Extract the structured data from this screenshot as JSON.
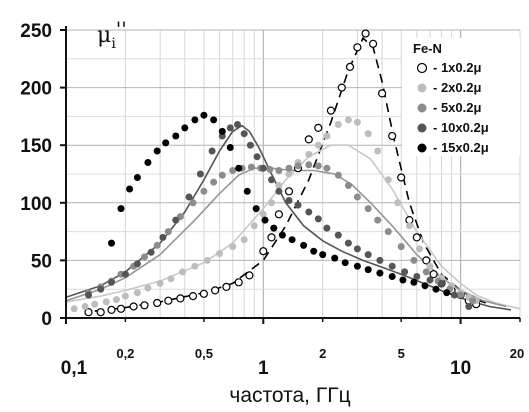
{
  "chart_data": {
    "type": "scatter",
    "xlabel": "частота, ГГц",
    "ylabel": {
      "base": "μ",
      "sub": "i",
      "sup": "''"
    },
    "xscale": "log",
    "xlim": [
      0.1,
      20
    ],
    "ylim": [
      0,
      250
    ],
    "grid": true,
    "x_ticks_major": [
      {
        "v": 0.1,
        "label": "0,1"
      },
      {
        "v": 1,
        "label": "1"
      },
      {
        "v": 10,
        "label": "10"
      }
    ],
    "x_ticks_minor": [
      {
        "v": 0.2,
        "label": "0,2"
      },
      {
        "v": 0.5,
        "label": "0,5"
      },
      {
        "v": 2,
        "label": "2"
      },
      {
        "v": 5,
        "label": "5"
      },
      {
        "v": 20,
        "label": "20"
      }
    ],
    "y_ticks": [
      0,
      50,
      100,
      150,
      200,
      250
    ],
    "legend_title": "Fe-N",
    "legend_position": "top-right",
    "series": [
      {
        "name": "- 1x0.2μ",
        "marker": "open",
        "color": "#000000",
        "x": [
          0.13,
          0.15,
          0.17,
          0.19,
          0.22,
          0.25,
          0.29,
          0.33,
          0.38,
          0.44,
          0.5,
          0.57,
          0.65,
          0.75,
          0.85,
          1.0,
          1.1,
          1.2,
          1.35,
          1.5,
          1.7,
          1.9,
          2.2,
          2.5,
          2.75,
          3.0,
          3.3,
          3.6,
          4.0,
          4.5,
          5.0,
          5.5,
          6.0,
          6.7,
          7.3,
          8.0,
          9.0,
          10.0,
          11.0,
          12.0
        ],
        "y": [
          5,
          5,
          7,
          8,
          10,
          11,
          13,
          15,
          17,
          19,
          21,
          24,
          27,
          31,
          37,
          58,
          70,
          90,
          110,
          130,
          155,
          165,
          180,
          200,
          218,
          235,
          247,
          238,
          195,
          158,
          122,
          85,
          70,
          50,
          38,
          30,
          24,
          20,
          15,
          12
        ]
      },
      {
        "name": "- 2x0.2μ",
        "marker": "filled",
        "color": "#bdbdbd",
        "x": [
          0.11,
          0.125,
          0.14,
          0.16,
          0.18,
          0.2,
          0.23,
          0.26,
          0.3,
          0.34,
          0.39,
          0.45,
          0.52,
          0.6,
          0.7,
          0.8,
          0.9,
          1.0,
          1.1,
          1.2,
          1.35,
          1.5,
          1.7,
          1.9,
          2.1,
          2.4,
          2.7,
          3.0,
          3.4,
          3.8,
          4.3,
          4.8,
          5.5,
          6.2,
          7.0,
          8.0,
          9.0,
          10.0,
          11.0,
          12.0
        ],
        "y": [
          8,
          10,
          12,
          14,
          16,
          19,
          22,
          26,
          30,
          34,
          40,
          45,
          50,
          56,
          62,
          68,
          80,
          90,
          100,
          115,
          125,
          135,
          142,
          150,
          158,
          168,
          172,
          170,
          160,
          145,
          120,
          100,
          80,
          60,
          45,
          35,
          28,
          22,
          18,
          15
        ]
      },
      {
        "name": "- 5x0.2μ",
        "marker": "filled",
        "color": "#8c8c8c",
        "x": [
          0.13,
          0.15,
          0.17,
          0.19,
          0.22,
          0.25,
          0.29,
          0.33,
          0.38,
          0.44,
          0.5,
          0.56,
          0.62,
          0.7,
          0.78,
          0.87,
          0.97,
          1.08,
          1.2,
          1.35,
          1.5,
          1.7,
          1.9,
          2.1,
          2.4,
          2.7,
          3.0,
          3.4,
          3.8,
          4.3,
          5.0,
          5.8,
          6.7,
          7.7,
          8.8,
          10.0,
          11.5
        ],
        "y": [
          22,
          27,
          32,
          38,
          45,
          53,
          63,
          75,
          88,
          100,
          110,
          118,
          124,
          128,
          130,
          131,
          130,
          129,
          128,
          130,
          132,
          133,
          132,
          130,
          124,
          115,
          105,
          95,
          85,
          75,
          62,
          50,
          40,
          32,
          25,
          20,
          15
        ]
      },
      {
        "name": "- 10x0.2μ",
        "marker": "filled",
        "color": "#555555",
        "x": [
          0.13,
          0.15,
          0.17,
          0.2,
          0.23,
          0.27,
          0.31,
          0.36,
          0.42,
          0.48,
          0.55,
          0.62,
          0.68,
          0.74,
          0.8,
          0.86,
          0.93,
          1.0,
          1.1,
          1.2,
          1.35,
          1.5,
          1.7,
          1.9,
          2.1,
          2.4,
          2.7,
          3.0,
          3.4,
          3.9,
          4.5,
          5.2,
          6.0,
          7.0,
          8.0,
          9.3,
          11.0
        ],
        "y": [
          20,
          25,
          31,
          38,
          47,
          57,
          70,
          85,
          105,
          125,
          145,
          158,
          165,
          168,
          160,
          150,
          140,
          130,
          120,
          110,
          102,
          98,
          92,
          86,
          78,
          72,
          65,
          60,
          55,
          50,
          45,
          40,
          36,
          33,
          30,
          20,
          10
        ]
      },
      {
        "name": "- 15x0.2μ",
        "marker": "filled",
        "color": "#000000",
        "x": [
          0.17,
          0.19,
          0.21,
          0.23,
          0.26,
          0.29,
          0.32,
          0.36,
          0.4,
          0.45,
          0.5,
          0.56,
          0.62,
          0.68,
          0.75,
          0.83,
          0.92,
          1.02,
          1.13,
          1.25,
          1.4,
          1.6,
          1.8,
          2.0,
          2.3,
          2.6,
          3.0,
          3.4,
          3.9,
          4.5,
          5.1,
          5.8,
          6.6,
          7.5,
          8.5
        ],
        "y": [
          65,
          95,
          112,
          122,
          135,
          145,
          152,
          158,
          165,
          172,
          176,
          172,
          162,
          148,
          130,
          110,
          95,
          85,
          78,
          72,
          68,
          63,
          58,
          55,
          52,
          48,
          45,
          42,
          39,
          36,
          33,
          31,
          28,
          25,
          22
        ]
      }
    ],
    "fit_lines": [
      {
        "color": "#000000",
        "dash": true,
        "x": [
          0.14,
          0.2,
          0.3,
          0.5,
          0.7,
          1.0,
          1.3,
          1.7,
          2.2,
          2.7,
          3.2,
          3.6,
          4.0,
          4.6,
          5.5,
          6.5,
          8.0,
          10.0,
          12.0,
          14.0
        ],
        "y": [
          6,
          9,
          14,
          22,
          30,
          50,
          80,
          120,
          170,
          215,
          243,
          235,
          205,
          155,
          100,
          65,
          38,
          24,
          16,
          12
        ]
      },
      {
        "color": "#c8c8c8",
        "dash": false,
        "x": [
          0.1,
          0.15,
          0.2,
          0.3,
          0.5,
          0.7,
          1.0,
          1.3,
          1.7,
          2.2,
          2.7,
          3.5,
          4.5,
          6.0,
          8.0,
          10.0,
          12.0,
          15.0,
          20.0
        ],
        "y": [
          14,
          19,
          24,
          32,
          48,
          65,
          95,
          120,
          140,
          150,
          150,
          138,
          112,
          75,
          45,
          30,
          20,
          13,
          8
        ]
      },
      {
        "color": "#969696",
        "dash": false,
        "x": [
          0.1,
          0.15,
          0.2,
          0.3,
          0.45,
          0.6,
          0.75,
          0.9,
          1.1,
          1.4,
          1.8,
          2.3,
          2.8,
          3.5,
          4.5,
          6.0,
          8.0,
          10.0,
          13.0,
          17.0
        ],
        "y": [
          15,
          25,
          35,
          55,
          85,
          108,
          124,
          130,
          130,
          128,
          128,
          125,
          116,
          100,
          80,
          55,
          35,
          24,
          15,
          10
        ]
      },
      {
        "color": "#555555",
        "dash": false,
        "x": [
          0.1,
          0.15,
          0.2,
          0.3,
          0.4,
          0.5,
          0.6,
          0.7,
          0.78,
          0.85,
          0.95,
          1.1,
          1.3,
          1.6,
          2.0,
          2.5,
          3.2,
          4.0,
          5.0,
          6.5,
          8.5,
          11.0,
          14.0,
          18.0
        ],
        "y": [
          18,
          28,
          40,
          65,
          92,
          120,
          145,
          162,
          167,
          162,
          148,
          125,
          100,
          80,
          67,
          58,
          50,
          44,
          38,
          30,
          22,
          15,
          10,
          7
        ]
      }
    ]
  }
}
